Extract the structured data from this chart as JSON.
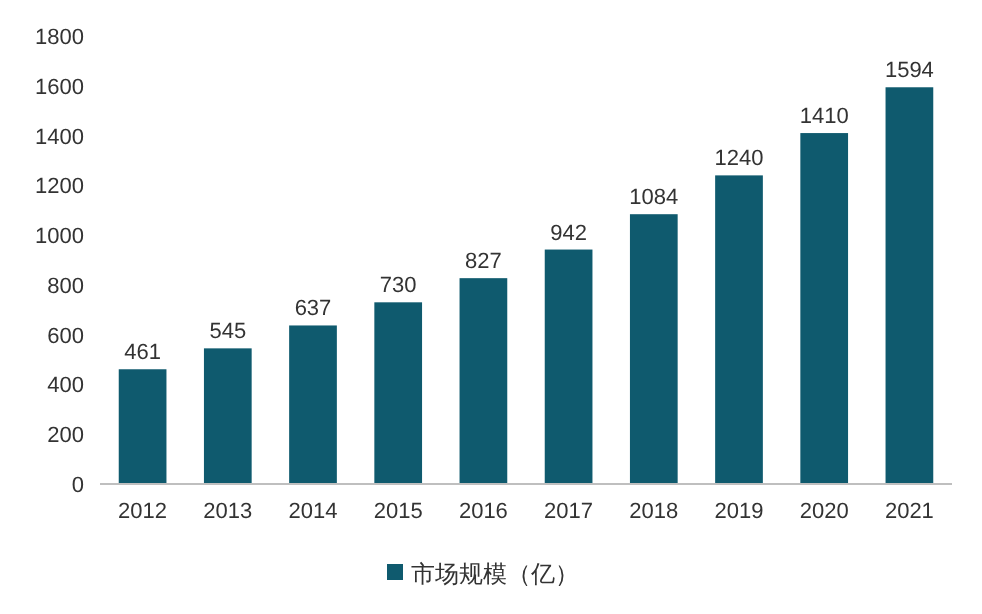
{
  "chart_data": {
    "type": "bar",
    "categories": [
      "2012",
      "2013",
      "2014",
      "2015",
      "2016",
      "2017",
      "2018",
      "2019",
      "2020",
      "2021"
    ],
    "series": [
      {
        "name": "市场规模（亿）",
        "color": "#0f5a6e",
        "values": [
          461,
          545,
          637,
          730,
          827,
          942,
          1084,
          1240,
          1410,
          1594
        ]
      }
    ],
    "ylim": [
      0,
      1800
    ],
    "yticks": [
      0,
      200,
      400,
      600,
      800,
      1000,
      1200,
      1400,
      1600,
      1800
    ],
    "data_labels": true,
    "legend": "bottom"
  }
}
